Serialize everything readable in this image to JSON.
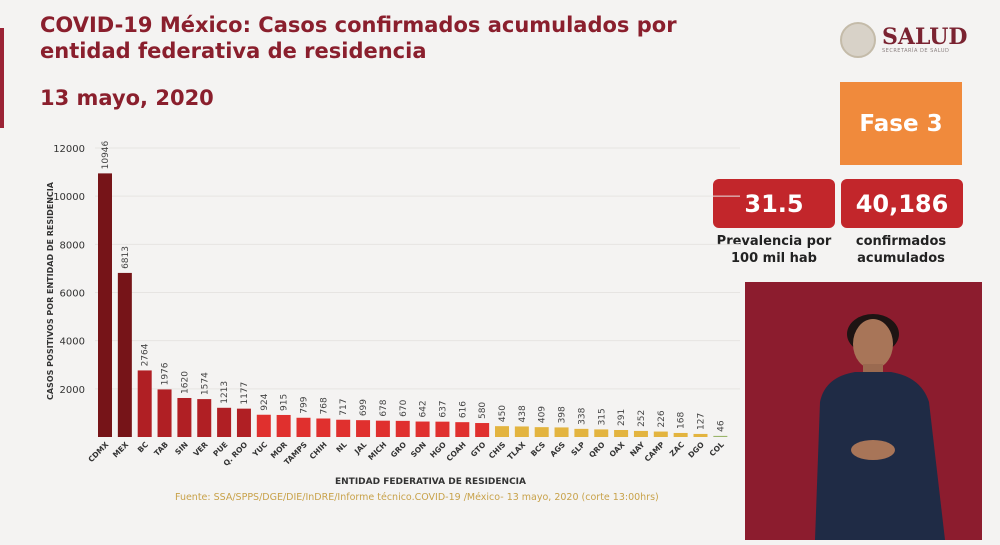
{
  "header": {
    "title": "COVID-19 México: Casos confirmados acumulados por entidad federativa de residencia",
    "date": "13 mayo, 2020"
  },
  "logo": {
    "name": "SALUD",
    "subtitle": "SECRETARÍA DE SALUD"
  },
  "phase": "Fase 3",
  "stats": [
    {
      "value": "31.5",
      "label": "Prevalencia por 100 mil hab"
    },
    {
      "value": "40,186",
      "label": "confirmados acumulados"
    }
  ],
  "source": "Fuente: SSA/SPPS/DGE/DIE/InDRE/Informe técnico.COVID-19 /México- 13 mayo, 2020 (corte 13:00hrs)",
  "colors": {
    "tier1": "#761418",
    "tier2": "#b01f24",
    "tier3": "#e0302e",
    "tier4": "#e3b43f",
    "tier5": "#9bb56a"
  },
  "chart_data": {
    "type": "bar",
    "title": "",
    "xlabel": "ENTIDAD FEDERATIVA DE RESIDENCIA",
    "ylabel": "CASOS POSITIVOS POR ENTIDAD DE RESIDENCIA",
    "ylim": [
      0,
      12000
    ],
    "yticks": [
      "2000",
      "4000",
      "6000",
      "8000",
      "10000",
      "12000"
    ],
    "categories": [
      "CDMX",
      "MEX",
      "BC",
      "TAB",
      "SIN",
      "VER",
      "PUE",
      "Q. ROO",
      "YUC",
      "MOR",
      "TAMPS",
      "CHIH",
      "NL",
      "JAL",
      "MICH",
      "GRO",
      "SON",
      "HGO",
      "COAH",
      "GTO",
      "CHIS",
      "TLAX",
      "BCS",
      "AGS",
      "SLP",
      "QRO",
      "OAX",
      "NAY",
      "CAMP",
      "ZAC",
      "DGO",
      "COL"
    ],
    "values": [
      10946,
      6813,
      2764,
      1976,
      1620,
      1574,
      1213,
      1177,
      924,
      915,
      799,
      768,
      717,
      699,
      678,
      670,
      642,
      637,
      616,
      580,
      450,
      438,
      409,
      398,
      338,
      315,
      291,
      252,
      226,
      168,
      127,
      46
    ],
    "tiers": [
      1,
      1,
      2,
      2,
      2,
      2,
      2,
      2,
      3,
      3,
      3,
      3,
      3,
      3,
      3,
      3,
      3,
      3,
      3,
      3,
      4,
      4,
      4,
      4,
      4,
      4,
      4,
      4,
      4,
      4,
      4,
      5
    ]
  }
}
